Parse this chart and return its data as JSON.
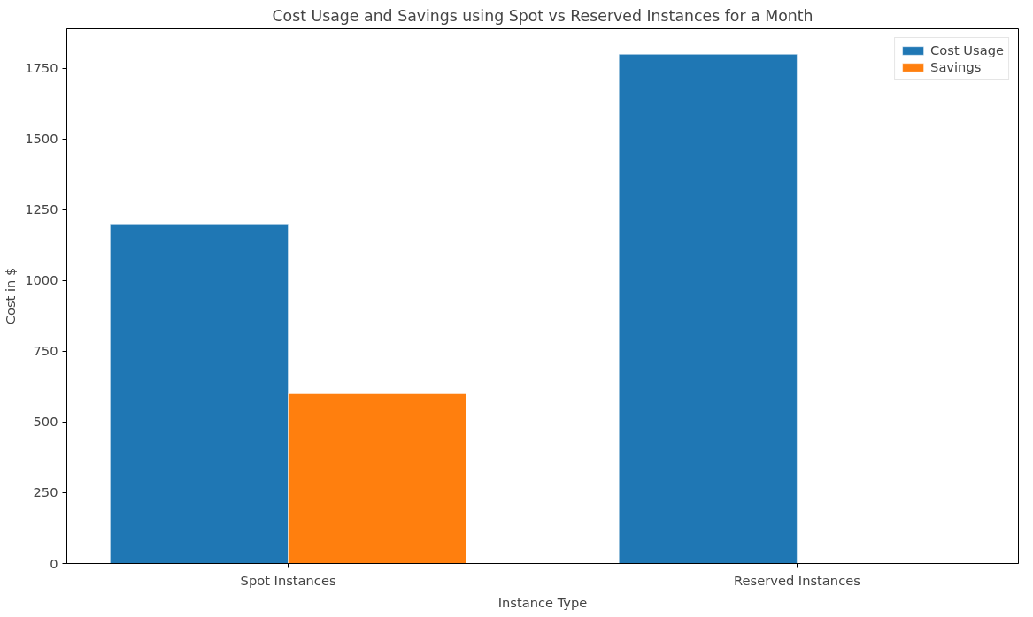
{
  "chart_data": {
    "type": "bar",
    "title": "Cost Usage and Savings using Spot vs Reserved Instances for a Month",
    "xlabel": "Instance Type",
    "ylabel": "Cost in $",
    "categories": [
      "Spot Instances",
      "Reserved Instances"
    ],
    "series": [
      {
        "name": "Cost Usage",
        "color": "#1f77b4",
        "values": [
          1200,
          1800
        ]
      },
      {
        "name": "Savings",
        "color": "#ff7f0e",
        "values": [
          600,
          null
        ]
      }
    ],
    "ylim": [
      0,
      1890
    ],
    "yticks": [
      0,
      250,
      500,
      750,
      1000,
      1250,
      1500,
      1750
    ],
    "grid": false,
    "legend": "top right"
  }
}
